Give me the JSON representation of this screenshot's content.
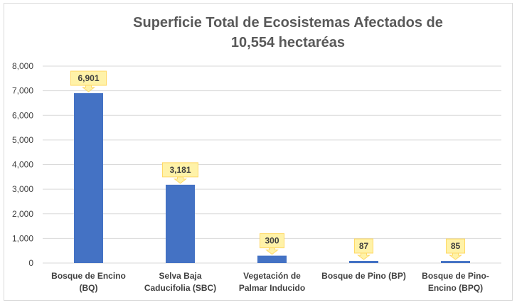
{
  "chart_data": {
    "type": "bar",
    "title": "Superficie Total de Ecosistemas Afectados de 10,554 hectaréas",
    "categories": [
      [
        "Bosque de Encino",
        "(BQ)"
      ],
      [
        "Selva Baja",
        "Caducifolia (SBC)"
      ],
      [
        "Vegetación de",
        "Palmar Inducido"
      ],
      [
        "Bosque de Pino (BP)"
      ],
      [
        "Bosque de Pino-",
        "Encino (BPQ)"
      ]
    ],
    "values": [
      6901,
      3181,
      300,
      87,
      85
    ],
    "data_labels": [
      "6,901",
      "3,181",
      "300",
      "87",
      "85"
    ],
    "ylim": [
      0,
      8000
    ],
    "yticks": [
      0,
      1000,
      2000,
      3000,
      4000,
      5000,
      6000,
      7000,
      8000
    ],
    "ytick_labels": [
      "0",
      "1,000",
      "2,000",
      "3,000",
      "4,000",
      "5,000",
      "6,000",
      "7,000",
      "8,000"
    ],
    "grid": true,
    "legend": "none",
    "colors": {
      "bar": "#4472c4",
      "callout_fill": "#fff2a8",
      "callout_border": "#ffd966",
      "gridline": "#d9d9d9"
    }
  }
}
